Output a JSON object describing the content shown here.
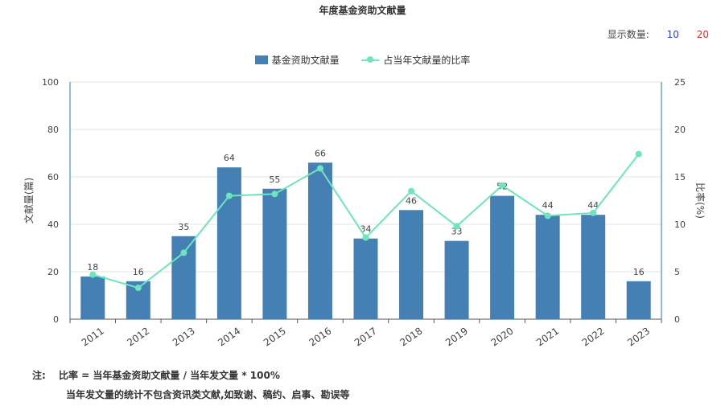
{
  "title": "年度基金资助文献量",
  "display": {
    "label": "显示数量:",
    "options": [
      "10",
      "20"
    ]
  },
  "legend": {
    "bar_label": "基金资助文献量",
    "line_label": "占当年文献量的比率"
  },
  "notes": {
    "label": "注:",
    "line1": "比率 = 当年基金资助文献量 / 当年发文量 * 100%",
    "line2": "当年发文量的统计不包含资讯类文献,如致谢、稿约、启事、勘误等"
  },
  "colors": {
    "bar": "#4580b5",
    "line": "#6be6bd",
    "axis": "#1f7bab",
    "grid": "#e3e3e3"
  },
  "chart_data": {
    "type": "bar",
    "categories": [
      "2011",
      "2012",
      "2013",
      "2014",
      "2015",
      "2016",
      "2017",
      "2018",
      "2019",
      "2020",
      "2021",
      "2022",
      "2023"
    ],
    "series": [
      {
        "name": "基金资助文献量",
        "type": "bar",
        "axis": "left",
        "values": [
          18,
          16,
          35,
          64,
          55,
          66,
          34,
          46,
          33,
          52,
          44,
          44,
          16
        ]
      },
      {
        "name": "占当年文献量的比率",
        "type": "line",
        "axis": "right",
        "values": [
          4.7,
          3.3,
          7.0,
          13.0,
          13.2,
          15.9,
          8.6,
          13.5,
          9.8,
          14.1,
          10.9,
          11.2,
          17.4
        ]
      }
    ],
    "ylabel": "文献量(篇)",
    "y2label": "比率(%)",
    "ylim": [
      0,
      100
    ],
    "y2lim": [
      0,
      25
    ],
    "yticks": [
      0,
      20,
      40,
      60,
      80,
      100
    ],
    "y2ticks": [
      0,
      5,
      10,
      15,
      20,
      25
    ],
    "grid": true,
    "legend_position": "top-center"
  }
}
